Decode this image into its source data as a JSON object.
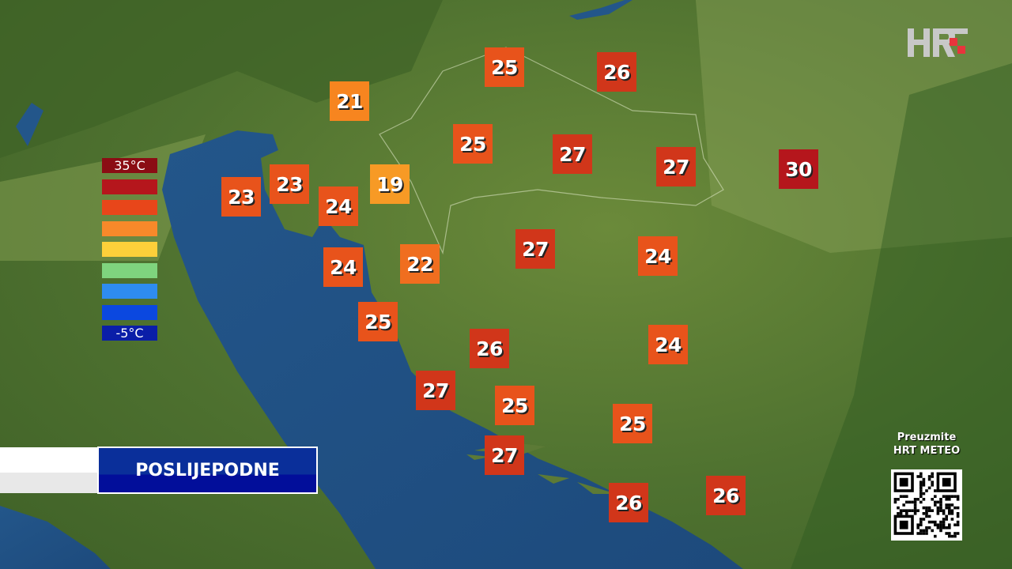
{
  "logo": {
    "text": "HRT",
    "accent": "#e8343c"
  },
  "legend": {
    "max_label": "35°C",
    "min_label": "-5°C",
    "colors": [
      "#8b0d14",
      "#b5161c",
      "#e8461a",
      "#f7892a",
      "#fcd03a",
      "#7fd47e",
      "#2e8cf0",
      "#0b48e0",
      "#0a1ea8"
    ]
  },
  "period_label": "POSLIJEPODNE",
  "qr": {
    "line1": "Preuzmite",
    "line2": "HRT METEO"
  },
  "temperatures": [
    {
      "value": "25"
    },
    {
      "value": "26"
    },
    {
      "value": "21"
    },
    {
      "value": "25"
    },
    {
      "value": "27"
    },
    {
      "value": "27"
    },
    {
      "value": "30"
    },
    {
      "value": "23"
    },
    {
      "value": "23"
    },
    {
      "value": "24"
    },
    {
      "value": "19"
    },
    {
      "value": "27"
    },
    {
      "value": "24"
    },
    {
      "value": "24"
    },
    {
      "value": "22"
    },
    {
      "value": "25"
    },
    {
      "value": "26"
    },
    {
      "value": "24"
    },
    {
      "value": "27"
    },
    {
      "value": "25"
    },
    {
      "value": "25"
    },
    {
      "value": "27"
    },
    {
      "value": "26"
    },
    {
      "value": "26"
    }
  ]
}
